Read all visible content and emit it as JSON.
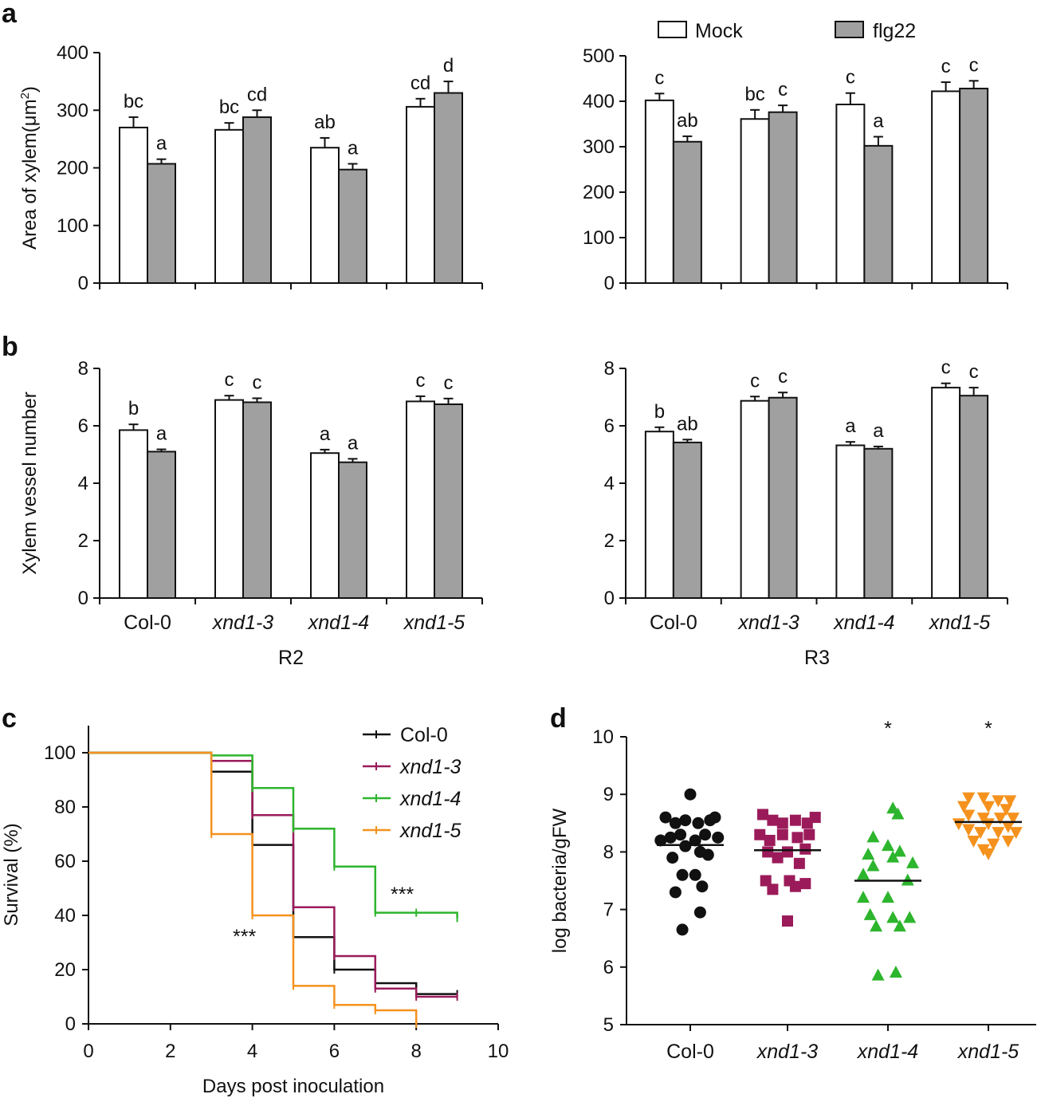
{
  "colors": {
    "mock": "#ffffff",
    "flg22": "#a0a0a0",
    "col0": "#111111",
    "xnd13": "#9b1b5a",
    "xnd14": "#2db52d",
    "xnd15": "#f5921e"
  },
  "chart_data": [
    {
      "panel": "a",
      "title": "R2",
      "type": "bar",
      "ylabel": "Area of xylem(μm²)",
      "ylabel_main": "Area of xylem(μm",
      "ylabel_sup": "2",
      "ylabel_end": ")",
      "ylim": [
        0,
        400
      ],
      "yticks": [
        "0",
        "100",
        "200",
        "300",
        "400"
      ],
      "categories": [
        "Col-0",
        "xnd1-3",
        "xnd1-4",
        "xnd1-5"
      ],
      "series": [
        {
          "name": "Mock",
          "values": [
            270,
            266,
            235,
            306
          ],
          "errors": [
            18,
            12,
            17,
            14
          ],
          "letters": [
            "bc",
            "bc",
            "ab",
            "cd"
          ]
        },
        {
          "name": "flg22",
          "values": [
            207,
            288,
            197,
            330
          ],
          "errors": [
            8,
            12,
            10,
            20
          ],
          "letters": [
            "a",
            "cd",
            "a",
            "d"
          ]
        }
      ]
    },
    {
      "panel": "a",
      "title": "R3",
      "type": "bar",
      "ylim": [
        0,
        500
      ],
      "yticks": [
        "0",
        "100",
        "200",
        "300",
        "400",
        "500"
      ],
      "categories": [
        "Col-0",
        "xnd1-3",
        "xnd1-4",
        "xnd1-5"
      ],
      "legend": [
        "Mock",
        "flg22"
      ],
      "series": [
        {
          "name": "Mock",
          "values": [
            402,
            361,
            393,
            422
          ],
          "errors": [
            15,
            20,
            25,
            20
          ],
          "letters": [
            "c",
            "bc",
            "c",
            "c"
          ]
        },
        {
          "name": "flg22",
          "values": [
            311,
            376,
            302,
            428
          ],
          "errors": [
            12,
            15,
            20,
            17
          ],
          "letters": [
            "ab",
            "c",
            "a",
            "c"
          ]
        }
      ]
    },
    {
      "panel": "b",
      "title": "R2",
      "type": "bar",
      "ylabel": "Xylem vessel number",
      "ylim": [
        0,
        8
      ],
      "yticks": [
        "0",
        "2",
        "4",
        "6",
        "8"
      ],
      "categories": [
        "Col-0",
        "xnd1-3",
        "xnd1-4",
        "xnd1-5"
      ],
      "series": [
        {
          "name": "Mock",
          "values": [
            5.85,
            6.9,
            5.05,
            6.85
          ],
          "errors": [
            0.2,
            0.15,
            0.12,
            0.18
          ],
          "letters": [
            "b",
            "c",
            "a",
            "c"
          ]
        },
        {
          "name": "flg22",
          "values": [
            5.1,
            6.82,
            4.73,
            6.75
          ],
          "errors": [
            0.08,
            0.14,
            0.12,
            0.2
          ],
          "letters": [
            "a",
            "c",
            "a",
            "c"
          ]
        }
      ]
    },
    {
      "panel": "b",
      "title": "R3",
      "type": "bar",
      "ylim": [
        0,
        8
      ],
      "yticks": [
        "0",
        "2",
        "4",
        "6",
        "8"
      ],
      "categories": [
        "Col-0",
        "xnd1-3",
        "xnd1-4",
        "xnd1-5"
      ],
      "series": [
        {
          "name": "Mock",
          "values": [
            5.8,
            6.87,
            5.32,
            7.33
          ],
          "errors": [
            0.15,
            0.15,
            0.12,
            0.15
          ],
          "letters": [
            "b",
            "c",
            "a",
            "c"
          ]
        },
        {
          "name": "flg22",
          "values": [
            5.42,
            6.98,
            5.2,
            7.05
          ],
          "errors": [
            0.1,
            0.18,
            0.08,
            0.28
          ],
          "letters": [
            "ab",
            "c",
            "a",
            "c"
          ]
        }
      ]
    },
    {
      "panel": "c",
      "type": "line",
      "xlabel": "Days post inoculation",
      "ylabel": "Survival (%)",
      "xlim": [
        0,
        10
      ],
      "ylim": [
        0,
        110
      ],
      "xticks": [
        "0",
        "2",
        "4",
        "6",
        "8",
        "10"
      ],
      "yticks": [
        "0",
        "20",
        "40",
        "60",
        "80",
        "100"
      ],
      "annotations": [
        "***",
        "***"
      ],
      "series": [
        {
          "name": "Col-0",
          "steps": [
            [
              0,
              100
            ],
            [
              3,
              93
            ],
            [
              4,
              66
            ],
            [
              5,
              32
            ],
            [
              6,
              20
            ],
            [
              7,
              15
            ],
            [
              8,
              11
            ],
            [
              9,
              11
            ]
          ]
        },
        {
          "name": "xnd1-3",
          "steps": [
            [
              0,
              100
            ],
            [
              3,
              97
            ],
            [
              4,
              77
            ],
            [
              5,
              43
            ],
            [
              6,
              25
            ],
            [
              7,
              13
            ],
            [
              8,
              10
            ],
            [
              9,
              10
            ]
          ]
        },
        {
          "name": "xnd1-4",
          "steps": [
            [
              0,
              100
            ],
            [
              3,
              99
            ],
            [
              4,
              87
            ],
            [
              5,
              72
            ],
            [
              6,
              58
            ],
            [
              7,
              41
            ],
            [
              8,
              41
            ],
            [
              9,
              39
            ]
          ]
        },
        {
          "name": "xnd1-5",
          "steps": [
            [
              0,
              100
            ],
            [
              3,
              70
            ],
            [
              4,
              40
            ],
            [
              5,
              14
            ],
            [
              6,
              7
            ],
            [
              7,
              5
            ],
            [
              8,
              0
            ]
          ]
        }
      ]
    },
    {
      "panel": "d",
      "type": "scatter",
      "ylabel": "log bacteria/gFW",
      "ylim": [
        5,
        10
      ],
      "yticks": [
        "5",
        "6",
        "7",
        "8",
        "9",
        "10"
      ],
      "categories": [
        "Col-0",
        "xnd1-3",
        "xnd1-4",
        "xnd1-5"
      ],
      "significance": [
        "",
        "",
        "*",
        "*"
      ],
      "series": [
        {
          "name": "Col-0",
          "marker": "circle",
          "mean": 8.12,
          "points": [
            [
              -0.25,
              8.6
            ],
            [
              -0.15,
              8.5
            ],
            [
              -0.05,
              8.55
            ],
            [
              0.08,
              8.5
            ],
            [
              0.2,
              8.55
            ],
            [
              0.25,
              8.6
            ],
            [
              0.0,
              9.0
            ],
            [
              -0.3,
              8.2
            ],
            [
              -0.2,
              8.25
            ],
            [
              -0.1,
              8.3
            ],
            [
              0.05,
              8.2
            ],
            [
              0.15,
              8.3
            ],
            [
              0.28,
              8.25
            ],
            [
              -0.05,
              8.1
            ],
            [
              0.1,
              8.0
            ],
            [
              -0.18,
              7.9
            ],
            [
              0.18,
              7.95
            ],
            [
              -0.08,
              7.6
            ],
            [
              0.05,
              7.6
            ],
            [
              -0.15,
              7.3
            ],
            [
              0.12,
              7.4
            ],
            [
              0.1,
              6.95
            ],
            [
              -0.08,
              6.65
            ]
          ]
        },
        {
          "name": "xnd1-3",
          "marker": "square",
          "mean": 8.03,
          "points": [
            [
              -0.25,
              8.65
            ],
            [
              -0.15,
              8.55
            ],
            [
              -0.05,
              8.5
            ],
            [
              0.08,
              8.55
            ],
            [
              0.2,
              8.5
            ],
            [
              0.28,
              8.6
            ],
            [
              -0.28,
              8.3
            ],
            [
              -0.18,
              8.2
            ],
            [
              -0.05,
              8.3
            ],
            [
              0.1,
              8.25
            ],
            [
              0.22,
              8.3
            ],
            [
              -0.2,
              8.0
            ],
            [
              0.0,
              8.0
            ],
            [
              0.18,
              8.05
            ],
            [
              -0.1,
              7.9
            ],
            [
              0.12,
              7.8
            ],
            [
              -0.22,
              7.5
            ],
            [
              0.02,
              7.5
            ],
            [
              0.18,
              7.45
            ],
            [
              -0.15,
              7.35
            ],
            [
              0.08,
              7.4
            ],
            [
              0.0,
              6.8
            ]
          ]
        },
        {
          "name": "xnd1-4",
          "marker": "triangle",
          "mean": 7.5,
          "points": [
            [
              0.05,
              8.75
            ],
            [
              0.1,
              8.65
            ],
            [
              -0.15,
              8.25
            ],
            [
              0.0,
              8.1
            ],
            [
              0.12,
              8.0
            ],
            [
              -0.2,
              7.95
            ],
            [
              0.05,
              7.9
            ],
            [
              0.25,
              7.8
            ],
            [
              -0.15,
              7.75
            ],
            [
              -0.25,
              7.6
            ],
            [
              0.2,
              7.5
            ],
            [
              -0.25,
              7.2
            ],
            [
              0.0,
              7.2
            ],
            [
              -0.18,
              6.9
            ],
            [
              0.05,
              6.85
            ],
            [
              0.22,
              6.85
            ],
            [
              -0.12,
              6.7
            ],
            [
              0.12,
              6.7
            ],
            [
              -0.1,
              5.85
            ],
            [
              0.08,
              5.9
            ]
          ]
        },
        {
          "name": "xnd1-5",
          "marker": "triangle-down",
          "mean": 8.52,
          "points": [
            [
              -0.2,
              8.95
            ],
            [
              -0.05,
              8.95
            ],
            [
              0.1,
              8.9
            ],
            [
              0.22,
              8.9
            ],
            [
              -0.25,
              8.8
            ],
            [
              0.0,
              8.8
            ],
            [
              0.18,
              8.75
            ],
            [
              -0.2,
              8.65
            ],
            [
              -0.05,
              8.6
            ],
            [
              0.12,
              8.6
            ],
            [
              0.25,
              8.6
            ],
            [
              -0.3,
              8.5
            ],
            [
              0.0,
              8.5
            ],
            [
              0.2,
              8.45
            ],
            [
              -0.2,
              8.4
            ],
            [
              -0.08,
              8.35
            ],
            [
              0.1,
              8.35
            ],
            [
              0.28,
              8.35
            ],
            [
              -0.15,
              8.2
            ],
            [
              0.05,
              8.15
            ],
            [
              0.2,
              8.2
            ],
            [
              -0.05,
              8.05
            ],
            [
              0.0,
              7.98
            ]
          ]
        }
      ]
    }
  ],
  "panels": {
    "a_letter": "a",
    "b_letter": "b",
    "c_letter": "c",
    "d_letter": "d",
    "r2_label": "R2",
    "r3_label": "R3",
    "legend_mock": "Mock",
    "legend_flg22": "flg22"
  }
}
